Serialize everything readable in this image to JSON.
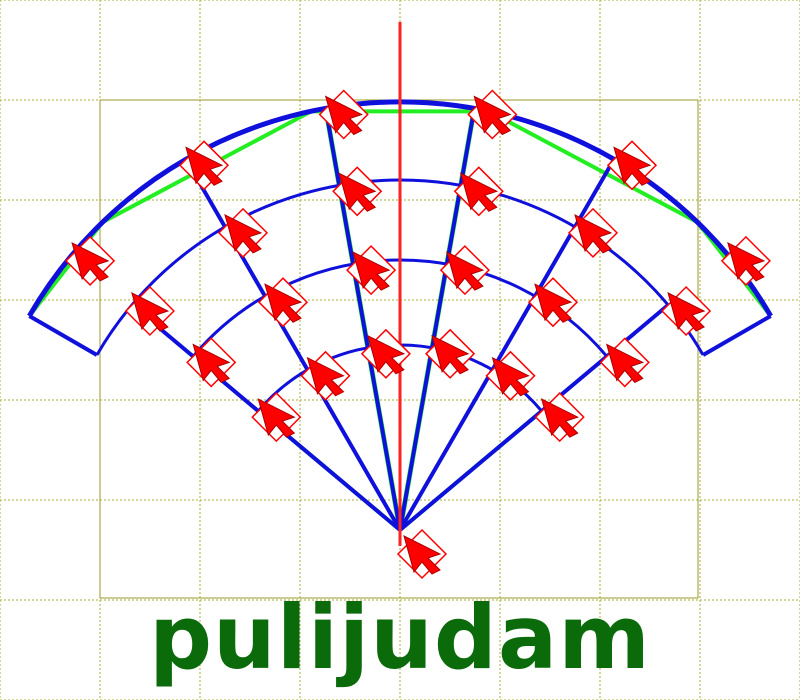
{
  "caption": "pulijudam",
  "colors": {
    "grid": "#a8ad3a",
    "frame": "#9a9a2a",
    "board_lines": "#1010dd",
    "diagonals": "#22ee22",
    "axis": "#ff2222",
    "marker_fill": "#ff0000",
    "marker_outline": "#ff0000",
    "caption": "#0b6b0b"
  },
  "markers": {
    "shape": "arrow-cursor-in-diamond",
    "count": 25
  }
}
